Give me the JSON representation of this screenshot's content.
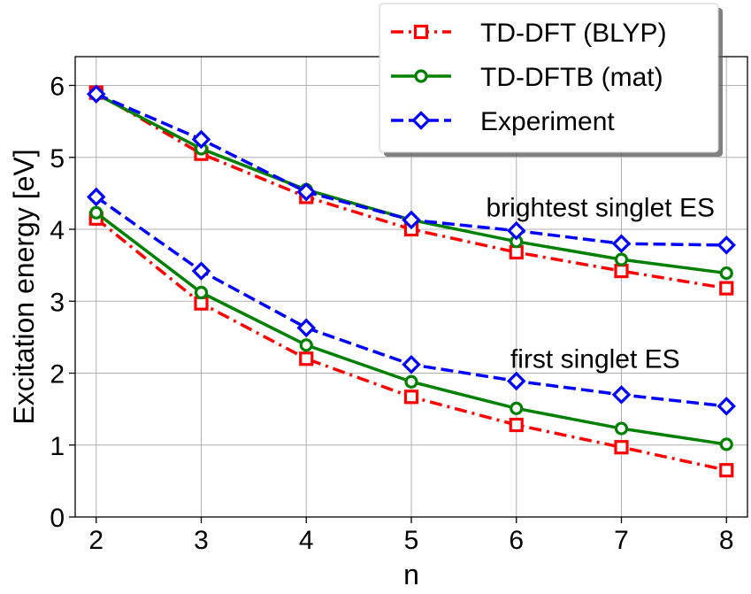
{
  "chart_data": {
    "type": "line",
    "xlabel": "n",
    "ylabel": "Excitation energy [eV]",
    "xlim": [
      1.8,
      8.2
    ],
    "ylim": [
      0,
      6.4
    ],
    "xticks": [
      "2",
      "3",
      "4",
      "5",
      "6",
      "7",
      "8"
    ],
    "yticks": [
      "0",
      "1",
      "2",
      "3",
      "4",
      "5",
      "6"
    ],
    "grid": true,
    "legend_position": "top-right",
    "x": [
      2,
      3,
      4,
      5,
      6,
      7,
      8
    ],
    "series": [
      {
        "key": "bright_dft",
        "name": "TD-DFT (BLYP)",
        "group": "brightest singlet ES",
        "values": [
          5.9,
          5.05,
          4.45,
          4.0,
          3.68,
          3.42,
          3.18
        ],
        "color": "#ff0000",
        "marker": "square",
        "linestyle": "dashdot"
      },
      {
        "key": "bright_dftb",
        "name": "TD-DFTB (mat)",
        "group": "brightest singlet ES",
        "values": [
          5.88,
          5.12,
          4.55,
          4.13,
          3.83,
          3.58,
          3.39
        ],
        "color": "#008000",
        "marker": "circle",
        "linestyle": "solid"
      },
      {
        "key": "bright_exp",
        "name": "Experiment",
        "group": "brightest singlet ES",
        "values": [
          5.88,
          5.25,
          4.52,
          4.13,
          3.98,
          3.8,
          3.78
        ],
        "color": "#0000ff",
        "marker": "diamond",
        "linestyle": "dashed"
      },
      {
        "key": "first_dft",
        "name": "TD-DFT (BLYP)",
        "group": "first singlet ES",
        "values": [
          4.15,
          2.97,
          2.2,
          1.67,
          1.28,
          0.97,
          0.65
        ],
        "color": "#ff0000",
        "marker": "square",
        "linestyle": "dashdot"
      },
      {
        "key": "first_dftb",
        "name": "TD-DFTB (mat)",
        "group": "first singlet ES",
        "values": [
          4.23,
          3.12,
          2.39,
          1.88,
          1.51,
          1.23,
          1.01
        ],
        "color": "#008000",
        "marker": "circle",
        "linestyle": "solid"
      },
      {
        "key": "first_exp",
        "name": "Experiment",
        "group": "first singlet ES",
        "values": [
          4.45,
          3.42,
          2.63,
          2.12,
          1.89,
          1.7,
          1.54
        ],
        "color": "#0000ff",
        "marker": "diamond",
        "linestyle": "dashed"
      }
    ],
    "legend": [
      {
        "label": "TD-DFT (BLYP)",
        "color": "#ff0000",
        "marker": "square",
        "linestyle": "dashdot"
      },
      {
        "label": "TD-DFTB (mat)",
        "color": "#008000",
        "marker": "circle",
        "linestyle": "solid"
      },
      {
        "label": "Experiment",
        "color": "#0000ff",
        "marker": "diamond",
        "linestyle": "dashed"
      }
    ],
    "annotations": [
      {
        "text": "brightest singlet ES",
        "x": 6.8,
        "y": 4.3
      },
      {
        "text": "first singlet ES",
        "x": 6.75,
        "y": 2.2
      }
    ]
  }
}
